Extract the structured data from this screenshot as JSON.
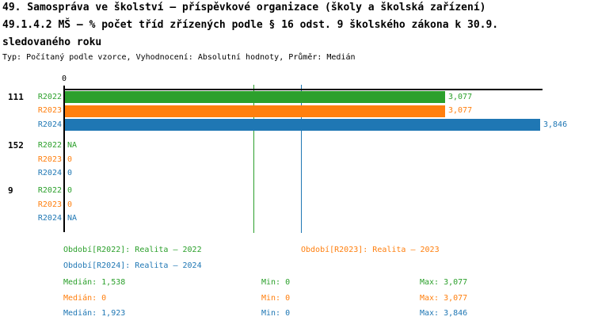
{
  "chart_data": {
    "type": "bar",
    "orientation": "horizontal",
    "title_lines": {
      "line1": "49. Samospráva ve školství – příspěvkové organizace (školy a školská zařízení)",
      "line2": "49.1.4.2 MŠ – % počet tříd zřízených podle § 16 odst. 9 školského zákona k 30.9.",
      "line3": "sledovaného roku"
    },
    "meta": "Typ: Počítaný podle vzorce, Vyhodnocení: Absolutní hodnoty, Průměr: Medián",
    "axis": {
      "tick_zero": "0",
      "xlim": [
        0,
        3878
      ],
      "grid": "median-lines-only"
    },
    "series": [
      {
        "name": "R2022",
        "label": "Období[R2022]: Realita – 2022",
        "color": "#2ca02c",
        "median": 1538,
        "min": 0,
        "max": 3077,
        "median_label": "Medián: 1,538",
        "min_label": "Min: 0",
        "max_label": "Max: 3,077"
      },
      {
        "name": "R2023",
        "label": "Období[R2023]: Realita – 2023",
        "color": "#ff7f0e",
        "median": 0,
        "min": 0,
        "max": 3077,
        "median_label": "Medián: 0",
        "min_label": "Min: 0",
        "max_label": "Max: 3,077"
      },
      {
        "name": "R2024",
        "label": "Období[R2024]: Realita – 2024",
        "color": "#1f77b4",
        "median": 1923,
        "min": 0,
        "max": 3846,
        "median_label": "Medián: 1,923",
        "min_label": "Min: 0",
        "max_label": "Max: 3,846"
      }
    ],
    "groups": [
      {
        "label": "111",
        "values": [
          3077,
          3077,
          3846
        ],
        "value_labels": [
          "3,077",
          "3,077",
          "3,846"
        ]
      },
      {
        "label": "152",
        "values": [
          null,
          0,
          0
        ],
        "value_labels": [
          "NA",
          "0",
          "0"
        ]
      },
      {
        "label": "9",
        "values": [
          0,
          0,
          null
        ],
        "value_labels": [
          "0",
          "0",
          "NA"
        ]
      }
    ],
    "legend_position": "bottom",
    "background_color": "#ffffff",
    "axis_color": "#000000"
  }
}
